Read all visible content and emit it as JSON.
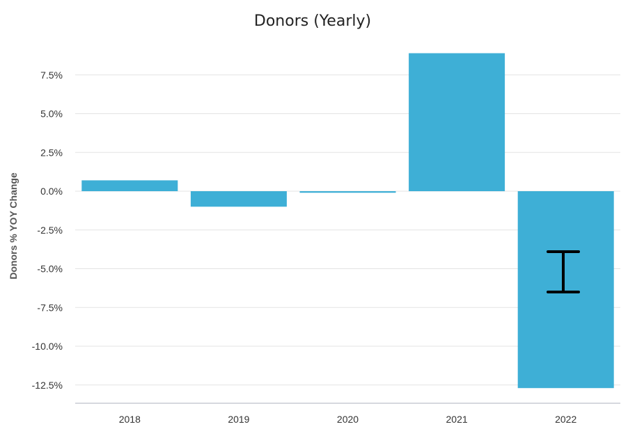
{
  "chart_data": {
    "type": "bar",
    "title": "Donors (Yearly)",
    "xlabel": "",
    "ylabel": "Donors % YOY Change",
    "categories": [
      "2018",
      "2019",
      "2020",
      "2021",
      "2022"
    ],
    "values": [
      0.7,
      -1.0,
      -0.1,
      8.9,
      -12.7
    ],
    "ylim": [
      -13.75,
      9.5
    ],
    "yticks": [
      7.5,
      5.0,
      2.5,
      0.0,
      -2.5,
      -5.0,
      -7.5,
      -10.0,
      -12.5
    ],
    "ytick_labels": [
      "7.5%",
      "5.0%",
      "2.5%",
      "0.0%",
      "-2.5%",
      "-5.0%",
      "-7.5%",
      "-10.0%",
      "-12.5%"
    ],
    "grid": true,
    "bar_color": "#3eafd6"
  },
  "overlay": {
    "icon": "text-cursor-icon"
  }
}
